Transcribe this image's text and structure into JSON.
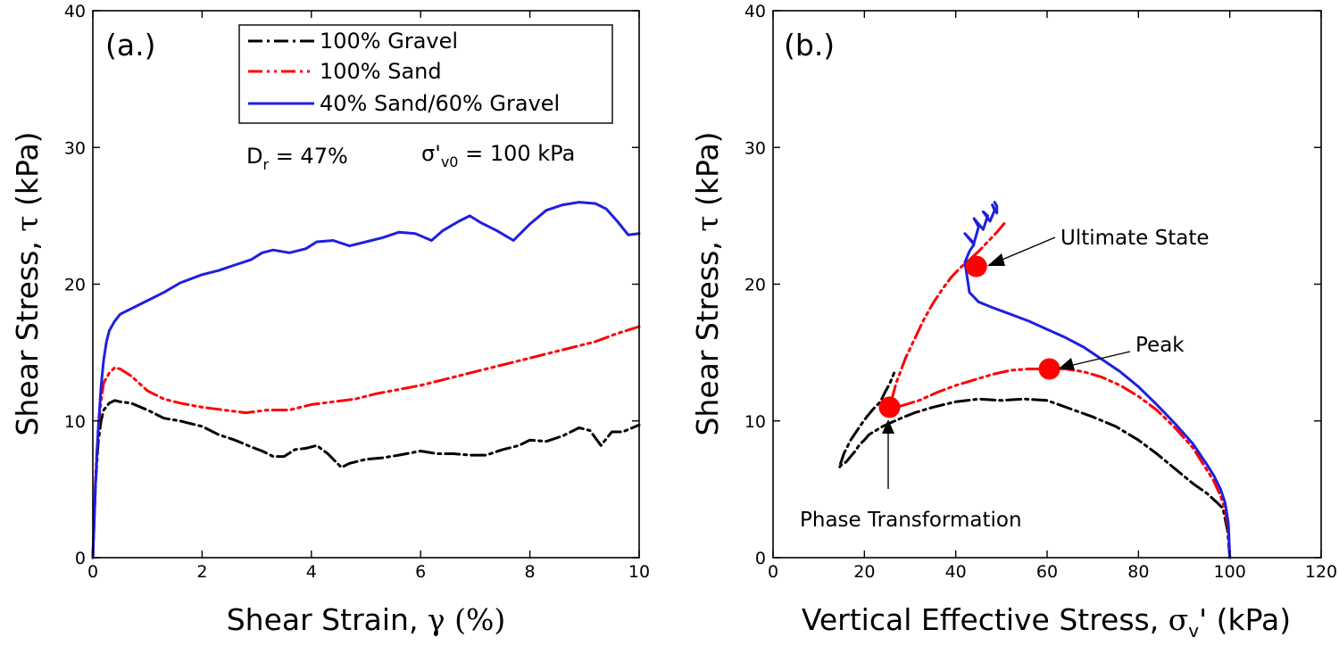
{
  "chart_data": [
    {
      "type": "line",
      "panel_label": "(a.)",
      "xlabel_main": "Shear Strain, ",
      "xlabel_symbol": "γ",
      "xlabel_unit": " (%)",
      "ylabel_main": "Shear Stress, ",
      "ylabel_symbol": "τ",
      "ylabel_unit": " (kPa)",
      "xlim": [
        0,
        10
      ],
      "ylim": [
        0,
        40
      ],
      "xticks": [
        "0",
        "2",
        "4",
        "6",
        "8",
        "10"
      ],
      "yticks": [
        "0",
        "10",
        "20",
        "30",
        "40"
      ],
      "grid": false,
      "legend_position": "top-right",
      "annotations": {
        "dr_base": "D",
        "dr_sub": "r",
        "dr_rest": " = 47%",
        "sig_base": "σ'",
        "sig_sub": "v0",
        "sig_rest": " = 100 kPa"
      },
      "series": [
        {
          "name": "100% Gravel",
          "color": "#000000",
          "dash": "dashdot",
          "x": [
            0,
            0.05,
            0.1,
            0.15,
            0.2,
            0.3,
            0.4,
            0.5,
            0.7,
            1.0,
            1.3,
            1.6,
            2.0,
            2.3,
            2.6,
            2.9,
            3.1,
            3.3,
            3.5,
            3.7,
            3.9,
            4.1,
            4.3,
            4.45,
            4.55,
            4.7,
            5.0,
            5.3,
            5.6,
            6.0,
            6.3,
            6.6,
            6.9,
            7.2,
            7.5,
            7.8,
            8.0,
            8.3,
            8.6,
            8.9,
            9.1,
            9.3,
            9.5,
            9.7,
            10.0
          ],
          "y": [
            0,
            5.5,
            8.5,
            10.0,
            10.8,
            11.3,
            11.5,
            11.4,
            11.3,
            10.8,
            10.2,
            10.0,
            9.6,
            9.0,
            8.6,
            8.1,
            7.8,
            7.4,
            7.4,
            7.9,
            8.0,
            8.2,
            7.6,
            7.0,
            6.6,
            6.9,
            7.2,
            7.3,
            7.5,
            7.8,
            7.6,
            7.6,
            7.5,
            7.5,
            7.9,
            8.2,
            8.6,
            8.5,
            8.9,
            9.5,
            9.3,
            8.2,
            9.2,
            9.2,
            9.7
          ]
        },
        {
          "name": "100% Sand",
          "color": "#ff0000",
          "dash": "dashdotdot",
          "x": [
            0,
            0.05,
            0.1,
            0.15,
            0.2,
            0.3,
            0.4,
            0.5,
            0.7,
            1.0,
            1.3,
            1.6,
            2.0,
            2.4,
            2.8,
            3.2,
            3.6,
            4.0,
            4.4,
            4.8,
            5.2,
            5.6,
            6.0,
            6.4,
            6.8,
            7.2,
            7.6,
            8.0,
            8.4,
            8.8,
            9.2,
            9.6,
            10.0
          ],
          "y": [
            0,
            6.0,
            9.5,
            11.5,
            12.8,
            13.5,
            13.9,
            13.8,
            13.3,
            12.2,
            11.6,
            11.3,
            11.0,
            10.8,
            10.6,
            10.8,
            10.8,
            11.2,
            11.4,
            11.6,
            12.0,
            12.3,
            12.6,
            13.0,
            13.4,
            13.8,
            14.2,
            14.6,
            15.0,
            15.4,
            15.8,
            16.4,
            16.9
          ]
        },
        {
          "name": "40% Sand/60% Gravel",
          "color": "#1f1fe0",
          "dash": "solid",
          "x": [
            0,
            0.05,
            0.1,
            0.15,
            0.2,
            0.25,
            0.3,
            0.4,
            0.5,
            0.6,
            0.8,
            1.0,
            1.3,
            1.6,
            2.0,
            2.3,
            2.6,
            2.9,
            3.1,
            3.3,
            3.6,
            3.9,
            4.1,
            4.4,
            4.7,
            5.0,
            5.3,
            5.6,
            5.9,
            6.2,
            6.4,
            6.7,
            6.9,
            7.1,
            7.4,
            7.7,
            8.0,
            8.3,
            8.6,
            8.9,
            9.2,
            9.4,
            9.6,
            9.8,
            10.0
          ],
          "y": [
            0,
            5.5,
            9.5,
            12.5,
            14.5,
            15.8,
            16.6,
            17.3,
            17.8,
            18.0,
            18.4,
            18.8,
            19.4,
            20.1,
            20.7,
            21.0,
            21.4,
            21.8,
            22.3,
            22.5,
            22.3,
            22.6,
            23.1,
            23.2,
            22.8,
            23.1,
            23.4,
            23.8,
            23.7,
            23.2,
            23.9,
            24.6,
            25.0,
            24.5,
            23.9,
            23.2,
            24.4,
            25.4,
            25.8,
            26.0,
            25.9,
            25.5,
            24.6,
            23.6,
            23.7
          ]
        }
      ]
    },
    {
      "type": "line",
      "panel_label": "(b.)",
      "xlabel_main": "Vertical Effective Stress, ",
      "xlabel_symbol": "σ",
      "xlabel_sub": "v",
      "xlabel_unit": "' (kPa)",
      "ylabel_main": "Shear Stress, ",
      "ylabel_symbol": "τ",
      "ylabel_unit": " (kPa)",
      "xlim": [
        0,
        120
      ],
      "ylim": [
        0,
        40
      ],
      "xticks": [
        "0",
        "20",
        "40",
        "60",
        "80",
        "100",
        "120"
      ],
      "yticks": [
        "0",
        "10",
        "20",
        "30",
        "40"
      ],
      "grid": false,
      "series": [
        {
          "name": "100% Gravel",
          "color": "#000000",
          "dash": "dashdot",
          "x": [
            100,
            99.5,
            98.5,
            97,
            95,
            92,
            88,
            84,
            80,
            75,
            70,
            65,
            60,
            55,
            50,
            45,
            40,
            35,
            31,
            28,
            26,
            24,
            22,
            21,
            20,
            19,
            18,
            17,
            16,
            15,
            14.5,
            15.5,
            17,
            19,
            20.5,
            22,
            23.5,
            24.5,
            25.5,
            26.5
          ],
          "y": [
            0,
            2.0,
            3.6,
            4.1,
            4.7,
            5.4,
            6.5,
            7.6,
            8.6,
            9.6,
            10.3,
            10.9,
            11.5,
            11.6,
            11.5,
            11.6,
            11.4,
            11.0,
            10.6,
            10.2,
            9.9,
            9.6,
            9.2,
            9.0,
            8.6,
            8.3,
            7.8,
            7.4,
            7.0,
            6.8,
            6.6,
            7.6,
            8.6,
            9.6,
            10.3,
            10.9,
            11.4,
            12.1,
            12.7,
            13.5
          ]
        },
        {
          "name": "100% Sand",
          "color": "#ff0000",
          "dash": "dashdotdot",
          "x": [
            100,
            99.6,
            99,
            98,
            96.5,
            95,
            92,
            88,
            84,
            80,
            76,
            72,
            68,
            64,
            60,
            56,
            52,
            48,
            44,
            40,
            36,
            32,
            29,
            27,
            25.5,
            27,
            29,
            31,
            33,
            35,
            37,
            39,
            41,
            43,
            45,
            47,
            49,
            51
          ],
          "y": [
            0,
            2.2,
            3.5,
            4.5,
            5.6,
            6.4,
            8.0,
            9.5,
            10.8,
            11.8,
            12.6,
            13.2,
            13.6,
            13.8,
            13.8,
            13.8,
            13.7,
            13.4,
            13.0,
            12.6,
            12.1,
            11.5,
            11.2,
            11.0,
            11.0,
            12.8,
            14.6,
            16.0,
            17.4,
            18.6,
            19.6,
            20.5,
            21.2,
            21.8,
            22.4,
            23.1,
            23.8,
            24.6
          ]
        },
        {
          "name": "40% Sand/60% Gravel",
          "color": "#1f1fe0",
          "dash": "solid",
          "x": [
            100,
            99.7,
            99,
            98,
            96.5,
            95,
            92,
            88,
            84,
            80,
            76,
            72,
            68,
            64,
            60,
            56,
            52,
            48,
            45,
            43,
            42.5,
            42,
            43,
            44,
            43,
            42,
            44,
            45,
            44,
            46,
            47,
            46,
            47.5,
            48.5,
            48,
            49,
            49,
            48.5
          ],
          "y": [
            0,
            2.5,
            4.0,
            5.0,
            6.0,
            6.8,
            8.3,
            9.8,
            11.2,
            12.5,
            13.6,
            14.5,
            15.4,
            16.1,
            16.7,
            17.3,
            17.8,
            18.3,
            18.7,
            19.4,
            20.5,
            21.6,
            22.4,
            22.9,
            23.3,
            23.7,
            23.0,
            24.2,
            24.8,
            24.0,
            25.0,
            25.3,
            24.6,
            25.4,
            25.8,
            25.2,
            25.7,
            26.0
          ]
        }
      ],
      "markers": [
        {
          "x": 25.5,
          "y": 11.0,
          "color": "#ff0000"
        },
        {
          "x": 44.5,
          "y": 21.3,
          "color": "#ff0000"
        },
        {
          "x": 60.5,
          "y": 13.8,
          "color": "#ff0000"
        }
      ],
      "callouts": {
        "ultimate": "Ultimate State",
        "peak": "Peak",
        "phase": "Phase Transformation"
      }
    }
  ]
}
